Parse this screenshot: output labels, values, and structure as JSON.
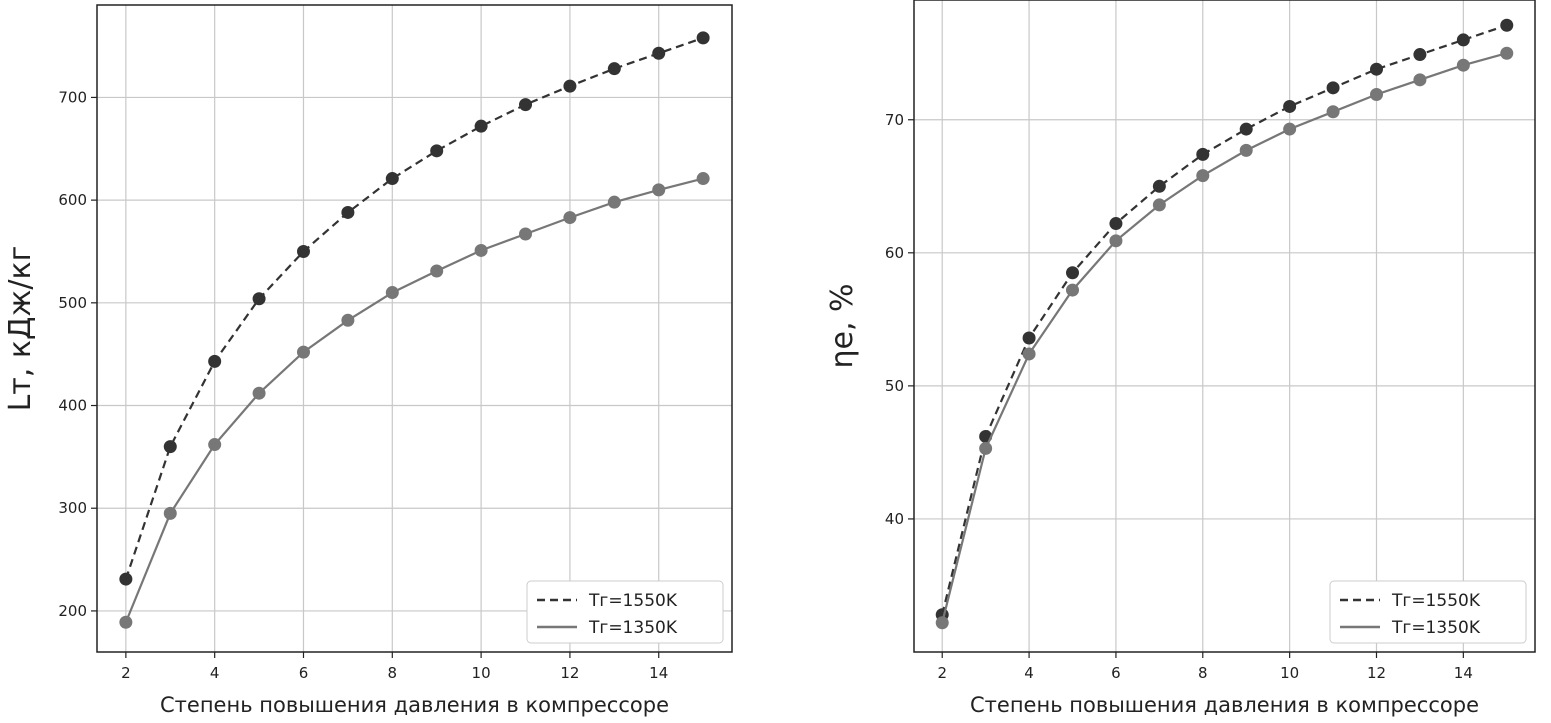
{
  "chart_data": [
    {
      "type": "line",
      "xlabel": "Степень повышения давления в компрессоре",
      "ylabel": "Lт, кДж/кг",
      "xlim": [
        1.35,
        15.65
      ],
      "ylim": [
        160,
        790
      ],
      "xticks": [
        2,
        4,
        6,
        8,
        10,
        12,
        14
      ],
      "yticks": [
        200,
        300,
        400,
        500,
        600,
        700
      ],
      "grid": true,
      "legend_position": "lower-right",
      "x": [
        2,
        3,
        4,
        5,
        6,
        7,
        8,
        9,
        10,
        11,
        12,
        13,
        14,
        15
      ],
      "series": [
        {
          "name": "Tг=1550K",
          "style": "dashed",
          "color": "#333333",
          "values": [
            231,
            360,
            443,
            504,
            550,
            588,
            621,
            648,
            672,
            693,
            711,
            728,
            743,
            758
          ]
        },
        {
          "name": "Tг=1350K",
          "style": "solid",
          "color": "#777777",
          "values": [
            189,
            295,
            362,
            412,
            452,
            483,
            510,
            531,
            551,
            567,
            583,
            598,
            610,
            621
          ]
        }
      ]
    },
    {
      "type": "line",
      "xlabel": "Степень повышения давления в компрессоре",
      "ylabel": "ηе, %",
      "xlim": [
        1.35,
        15.65
      ],
      "ylim": [
        30,
        79
      ],
      "xticks": [
        2,
        4,
        6,
        8,
        10,
        12,
        14
      ],
      "yticks": [
        40,
        50,
        60,
        70
      ],
      "grid": true,
      "legend_position": "lower-right",
      "x": [
        2,
        3,
        4,
        5,
        6,
        7,
        8,
        9,
        10,
        11,
        12,
        13,
        14,
        15
      ],
      "series": [
        {
          "name": "Tг=1550K",
          "style": "dashed",
          "color": "#333333",
          "values": [
            32.8,
            46.2,
            53.6,
            58.5,
            62.2,
            65.0,
            67.4,
            69.3,
            71.0,
            72.4,
            73.8,
            74.9,
            76.0,
            77.1
          ]
        },
        {
          "name": "Tг=1350K",
          "style": "solid",
          "color": "#777777",
          "values": [
            32.2,
            45.3,
            52.4,
            57.2,
            60.9,
            63.6,
            65.8,
            67.7,
            69.3,
            70.6,
            71.9,
            73.0,
            74.1,
            75.0
          ]
        }
      ]
    }
  ]
}
